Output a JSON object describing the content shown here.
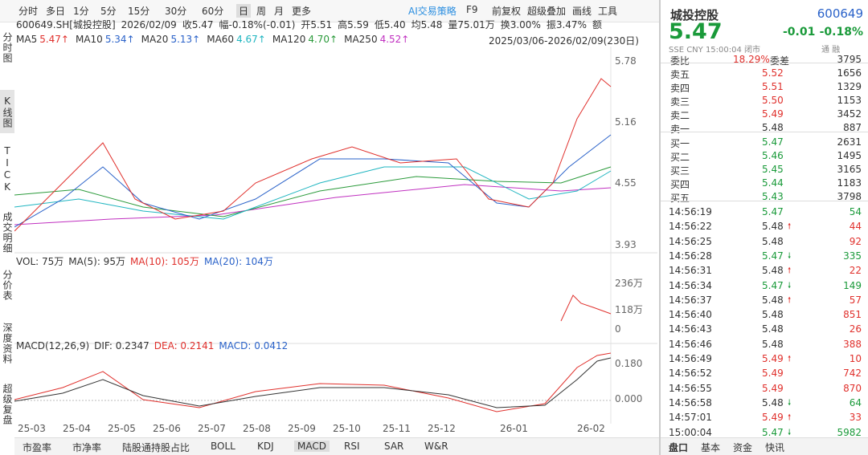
{
  "toolbar": {
    "periods": [
      "分时",
      "多日",
      "1分",
      "5分",
      "15分",
      "30分",
      "60分",
      "日",
      "周",
      "月",
      "更多"
    ],
    "active": 7,
    "tools": [
      "AI交易策略",
      "F9",
      "前复权",
      "超级叠加",
      "画线",
      "工具"
    ]
  },
  "sidebar": [
    "分时图",
    "K线图",
    "TICK",
    "成交明细",
    "分价表",
    "深度资料",
    "超级复盘"
  ],
  "info": {
    "items": [
      "600649.SH[城投控股]",
      "2026/02/09",
      "收5.47",
      "幅-0.18%(-0.01)",
      "开5.51",
      "高5.59",
      "低5.40",
      "均5.48",
      "量75.01万",
      "换3.00%",
      "振3.47%",
      "额"
    ],
    "ma": [
      {
        "label": "MA5",
        "value": "5.47↑",
        "color": "#e0302c"
      },
      {
        "label": "MA10",
        "value": "5.34↑",
        "color": "#2a62c9"
      },
      {
        "label": "MA20",
        "value": "5.13↑",
        "color": "#2a62c9"
      },
      {
        "label": "MA60",
        "value": "4.67↑",
        "color": "#1fb5c0"
      },
      {
        "label": "MA120",
        "value": "4.70↑",
        "color": "#2a9a3a"
      },
      {
        "label": "MA250",
        "value": "4.52↑",
        "color": "#c030c0"
      }
    ],
    "range": "2025/03/06-2026/02/09(230日)"
  },
  "price_axis": [
    "5.78",
    "5.16",
    "4.55",
    "3.93"
  ],
  "volume": {
    "header": [
      {
        "text": "VOL: 75万",
        "color": "#333"
      },
      {
        "text": "MA(5): 95万",
        "color": "#333"
      },
      {
        "text": "MA(10): 105万",
        "color": "#e0302c"
      },
      {
        "text": "MA(20): 104万",
        "color": "#2a62c9"
      }
    ],
    "axis": [
      "236万",
      "118万",
      "0"
    ]
  },
  "macd": {
    "header": [
      {
        "text": "MACD(12,26,9)",
        "color": "#333"
      },
      {
        "text": "DIF: 0.2347",
        "color": "#333"
      },
      {
        "text": "DEA: 0.2141",
        "color": "#e0302c"
      },
      {
        "text": "MACD: 0.0412",
        "color": "#2a62c9"
      }
    ],
    "axis": [
      "0.180",
      "0.000"
    ]
  },
  "x_labels": [
    "25-03",
    "25-04",
    "25-05",
    "25-06",
    "25-07",
    "25-08",
    "25-09",
    "25-10",
    "25-11",
    "25-12",
    "26-01",
    "26-02"
  ],
  "bottom_tabs": [
    "市盈率",
    "市净率",
    "陆股通持股占比",
    "BOLL",
    "KDJ",
    "MACD",
    "RSI",
    "SAR",
    "W&R"
  ],
  "quote": {
    "name": "城投控股",
    "code": "600649",
    "price": "5.47",
    "change": "-0.01",
    "pct": "-0.18%",
    "meta": "SSE  CNY  15:00:04  闭市",
    "badges": "通 融",
    "wb_label": "委比",
    "wb": "18.29%",
    "wc_label": "委差",
    "wc": "3795",
    "asks": [
      [
        "卖五",
        "5.52",
        "1656"
      ],
      [
        "卖四",
        "5.51",
        "1329"
      ],
      [
        "卖三",
        "5.50",
        "1153"
      ],
      [
        "卖二",
        "5.49",
        "3452"
      ],
      [
        "卖一",
        "5.48",
        "887"
      ]
    ],
    "bids": [
      [
        "买一",
        "5.47",
        "2631"
      ],
      [
        "买二",
        "5.46",
        "1495"
      ],
      [
        "买三",
        "5.45",
        "3165"
      ],
      [
        "买四",
        "5.44",
        "1183"
      ],
      [
        "买五",
        "5.43",
        "3798"
      ]
    ],
    "ticks": [
      {
        "time": "14:56:19",
        "price": "5.47",
        "vol": "54",
        "pc": "green",
        "vc": "green"
      },
      {
        "time": "14:56:22",
        "price": "5.48",
        "vol": "44",
        "pc": "black",
        "vc": "red",
        "dir": "up"
      },
      {
        "time": "14:56:25",
        "price": "5.48",
        "vol": "92",
        "pc": "black",
        "vc": "red"
      },
      {
        "time": "14:56:28",
        "price": "5.47",
        "vol": "335",
        "pc": "green",
        "vc": "green",
        "dir": "down"
      },
      {
        "time": "14:56:31",
        "price": "5.48",
        "vol": "22",
        "pc": "black",
        "vc": "red",
        "dir": "up"
      },
      {
        "time": "14:56:34",
        "price": "5.47",
        "vol": "149",
        "pc": "green",
        "vc": "green",
        "dir": "down"
      },
      {
        "time": "14:56:37",
        "price": "5.48",
        "vol": "57",
        "pc": "black",
        "vc": "red",
        "dir": "up"
      },
      {
        "time": "14:56:40",
        "price": "5.48",
        "vol": "851",
        "pc": "black",
        "vc": "red"
      },
      {
        "time": "14:56:43",
        "price": "5.48",
        "vol": "26",
        "pc": "black",
        "vc": "red"
      },
      {
        "time": "14:56:46",
        "price": "5.48",
        "vol": "388",
        "pc": "black",
        "vc": "red"
      },
      {
        "time": "14:56:49",
        "price": "5.49",
        "vol": "10",
        "pc": "red",
        "vc": "red",
        "dir": "up"
      },
      {
        "time": "14:56:52",
        "price": "5.49",
        "vol": "742",
        "pc": "red",
        "vc": "red"
      },
      {
        "time": "14:56:55",
        "price": "5.49",
        "vol": "870",
        "pc": "red",
        "vc": "red"
      },
      {
        "time": "14:56:58",
        "price": "5.48",
        "vol": "64",
        "pc": "black",
        "vc": "green",
        "dir": "down"
      },
      {
        "time": "14:57:01",
        "price": "5.49",
        "vol": "33",
        "pc": "red",
        "vc": "red",
        "dir": "up"
      },
      {
        "time": "15:00:04",
        "price": "5.47",
        "vol": "5982",
        "pc": "green",
        "vc": "green",
        "dir": "down"
      }
    ]
  },
  "quote_tabs": [
    "盘口",
    "基本",
    "资金",
    "快讯"
  ]
}
